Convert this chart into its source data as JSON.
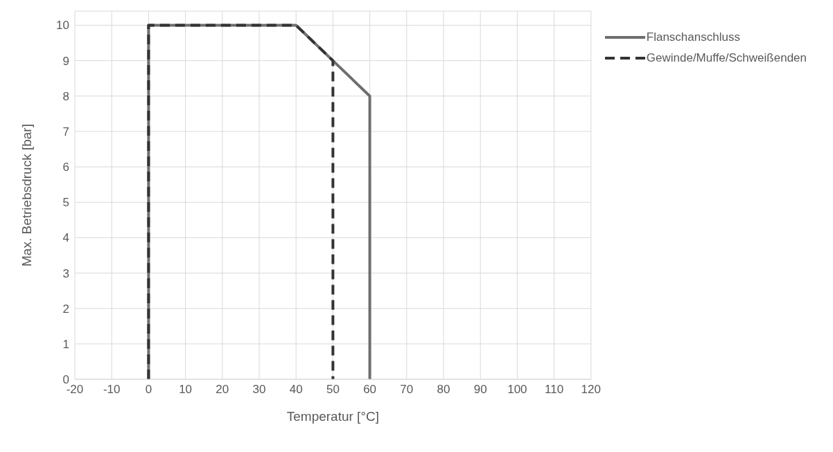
{
  "chart_data": {
    "type": "line",
    "xlabel": "Temperatur  [°C]",
    "ylabel": "Max. Betriebsdruck  [bar]",
    "xlim": [
      -20,
      120
    ],
    "xticks": [
      -20,
      -10,
      0,
      10,
      20,
      30,
      40,
      50,
      60,
      70,
      80,
      90,
      100,
      110,
      120
    ],
    "ylim": [
      0,
      10.4
    ],
    "yticks": [
      0,
      1,
      2,
      3,
      4,
      5,
      6,
      7,
      8,
      9,
      10
    ],
    "grid": true,
    "legend": "top right",
    "series": [
      {
        "name": "Flanschanschluss",
        "color": "#6e6e6e",
        "line_style": "solid",
        "x": [
          0,
          0,
          40,
          50,
          60,
          60
        ],
        "values": [
          0,
          10,
          10,
          9,
          8,
          0
        ]
      },
      {
        "name": "Gewinde/Muffe/Schweißenden",
        "color": "#333333",
        "line_style": "dashed",
        "x": [
          0,
          0,
          40,
          50,
          50
        ],
        "values": [
          0,
          10,
          10,
          9,
          0
        ]
      }
    ]
  }
}
